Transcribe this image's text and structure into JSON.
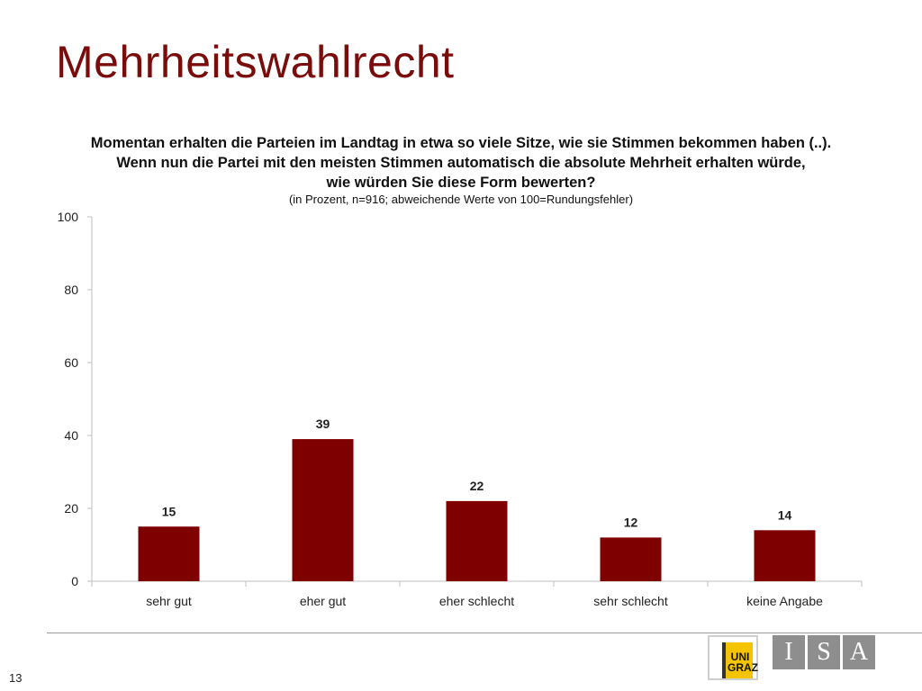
{
  "slide": {
    "title": "Mehrheitswahlrecht",
    "page_number": "13"
  },
  "question": {
    "line1": "Momentan erhalten die Parteien im Landtag in etwa so viele Sitze, wie sie Stimmen bekommen haben (..).",
    "line2": "Wenn nun die Partei mit den meisten Stimmen automatisch die absolute Mehrheit erhalten würde,",
    "line3": "wie würden Sie diese Form bewerten?",
    "note": "(in Prozent, n=916; abweichende Werte von 100=Rundungsfehler)"
  },
  "logos": {
    "uni_label": "UNI GRAZ",
    "isa_letters": [
      "I",
      "S",
      "A"
    ]
  },
  "colors": {
    "title": "#7b0c0c",
    "bar": "#7f0000",
    "axis": "#bfbfbf",
    "logo_gray": "#8e8e8e",
    "logo_yellow": "#f5c400"
  },
  "chart_data": {
    "type": "bar",
    "categories": [
      "sehr gut",
      "eher gut",
      "eher schlecht",
      "sehr schlecht",
      "keine Angabe"
    ],
    "values": [
      15,
      39,
      22,
      12,
      14
    ],
    "data_labels": [
      "15",
      "39",
      "22",
      "12",
      "14"
    ],
    "ylim": [
      0,
      100
    ],
    "yticks": [
      0,
      20,
      40,
      60,
      80,
      100
    ],
    "ytick_labels": [
      "0",
      "20",
      "40",
      "60",
      "80",
      "100"
    ],
    "grid": false,
    "legend": "none"
  }
}
